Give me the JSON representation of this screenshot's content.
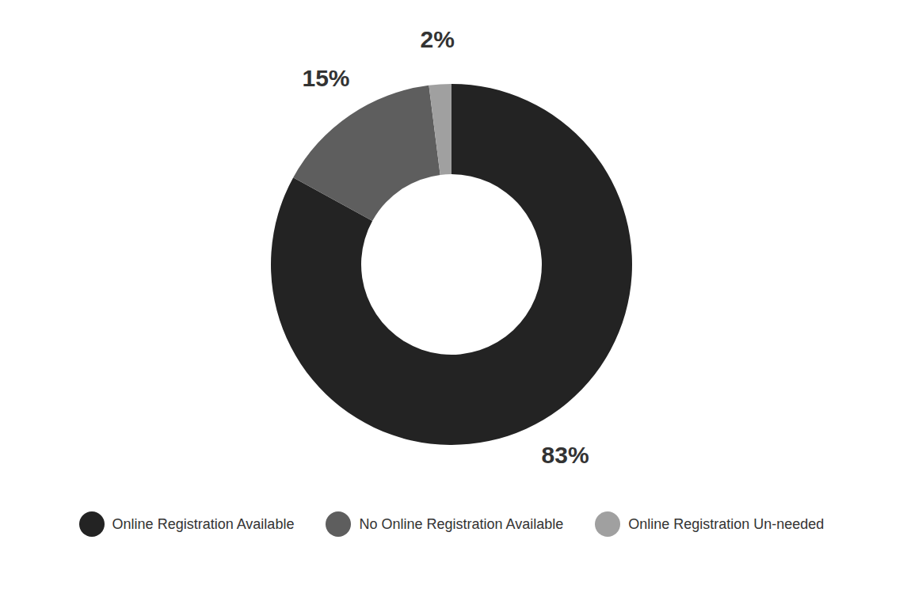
{
  "chart_data": {
    "type": "donut",
    "categories": [
      "Online Registration Available",
      "No Online Registration Available",
      "Online Registration Un-needed"
    ],
    "values": [
      83,
      15,
      2
    ],
    "value_labels": [
      "83%",
      "15%",
      "2%"
    ],
    "colors": [
      "#232323",
      "#5e5e5e",
      "#a0a0a0"
    ],
    "data_labels": true,
    "legend": "bottom"
  }
}
